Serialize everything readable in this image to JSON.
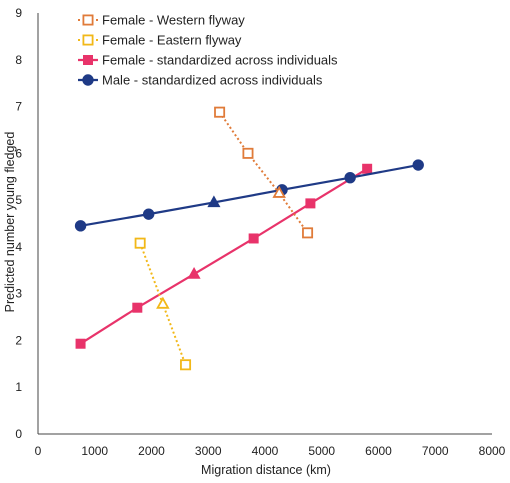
{
  "chart_data": {
    "type": "line",
    "title": "",
    "xlabel": "Migration distance (km)",
    "ylabel": "Predicted number young fledged",
    "xlim": [
      0,
      8000
    ],
    "ylim": [
      0,
      9
    ],
    "x_ticks": [
      "0",
      "1000",
      "2000",
      "3000",
      "4000",
      "5000",
      "6000",
      "7000",
      "8000"
    ],
    "y_ticks": [
      "0",
      "1",
      "2",
      "3",
      "4",
      "5",
      "6",
      "7",
      "8",
      "9"
    ],
    "grid": false,
    "legend_position": "top-left",
    "series": [
      {
        "name": "Female - Western flyway",
        "color": "#E07B39",
        "line_style": "dotted",
        "marker": "open-square",
        "x": [
          3200,
          3700,
          4250,
          4750
        ],
        "y": [
          6.88,
          6.0,
          5.15,
          4.3
        ],
        "triangle_index": 2
      },
      {
        "name": "Female - Eastern flyway",
        "color": "#F2B818",
        "line_style": "dotted",
        "marker": "open-square",
        "x": [
          1800,
          2200,
          2600
        ],
        "y": [
          4.08,
          2.78,
          1.48
        ],
        "triangle_index": 1
      },
      {
        "name": "Female - standardized across individuals",
        "color": "#E8336A",
        "line_style": "solid",
        "marker": "filled-square",
        "x": [
          750,
          1750,
          2750,
          3800,
          4800,
          5800
        ],
        "y": [
          1.93,
          2.7,
          3.42,
          4.18,
          4.93,
          5.67
        ],
        "triangle_index": 2
      },
      {
        "name": "Male - standardized across individuals",
        "color": "#1F3A86",
        "line_style": "solid",
        "marker": "filled-circle",
        "x": [
          750,
          1950,
          3100,
          4300,
          5500,
          6700
        ],
        "y": [
          4.45,
          4.7,
          4.95,
          5.22,
          5.48,
          5.75
        ],
        "triangle_index": 2
      }
    ]
  }
}
